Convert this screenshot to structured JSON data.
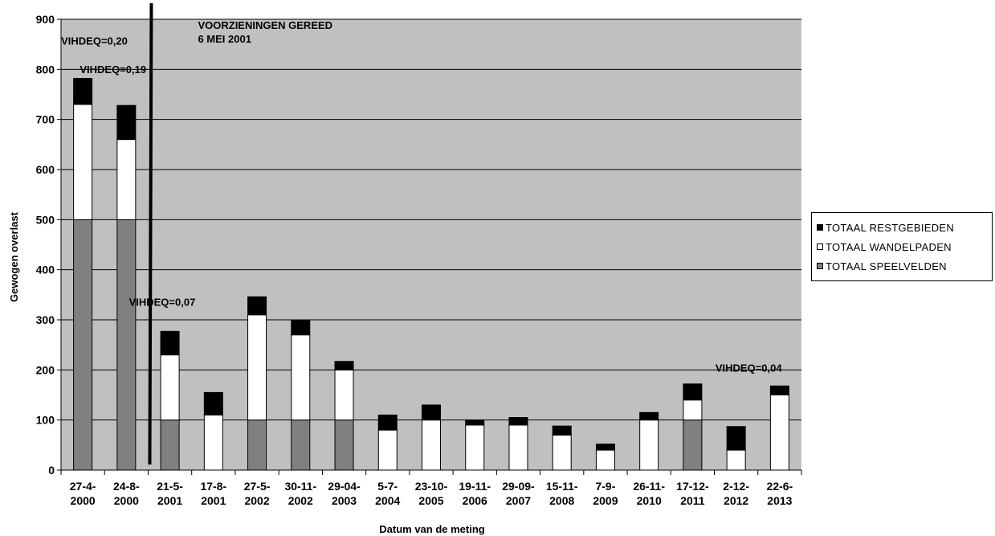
{
  "chart_data": {
    "type": "bar",
    "stacked": true,
    "ylabel": "Gewogen overlast",
    "xlabel": "Datum van de meting",
    "ylim": [
      0,
      900
    ],
    "yticks": [
      0,
      100,
      200,
      300,
      400,
      500,
      600,
      700,
      800,
      900
    ],
    "grid": true,
    "legend_position": "right",
    "categories": [
      [
        "27-4-",
        "2000"
      ],
      [
        "24-8-",
        "2000"
      ],
      [
        "21-5-",
        "2001"
      ],
      [
        "17-8-",
        "2001"
      ],
      [
        "27-5-",
        "2002"
      ],
      [
        "30-11-",
        "2002"
      ],
      [
        "29-04-",
        "2003"
      ],
      [
        "5-7-",
        "2004"
      ],
      [
        "23-10-",
        "2005"
      ],
      [
        "19-11-",
        "2006"
      ],
      [
        "29-09-",
        "2007"
      ],
      [
        "15-11-",
        "2008"
      ],
      [
        "7-9-",
        "2009"
      ],
      [
        "26-11-",
        "2010"
      ],
      [
        "17-12-",
        "2011"
      ],
      [
        "2-12-",
        "2012"
      ],
      [
        "22-6-",
        "2013"
      ]
    ],
    "series": [
      {
        "name": "TOTAAL SPEELVELDEN",
        "color": "#808080",
        "values": [
          500,
          500,
          100,
          0,
          100,
          100,
          100,
          0,
          0,
          0,
          0,
          0,
          0,
          0,
          100,
          0,
          0
        ]
      },
      {
        "name": "TOTAAL WANDELPADEN",
        "color": "#ffffff",
        "values": [
          230,
          160,
          130,
          110,
          210,
          170,
          100,
          80,
          100,
          90,
          90,
          70,
          40,
          100,
          40,
          40,
          150
        ]
      },
      {
        "name": "TOTAAL RESTGEBIEDEN",
        "color": "#000000",
        "values": [
          52,
          68,
          47,
          45,
          36,
          30,
          17,
          30,
          30,
          10,
          15,
          18,
          12,
          15,
          32,
          47,
          18
        ]
      }
    ],
    "annotations": [
      {
        "text": "VIHDEQ=0,20",
        "bar": 0
      },
      {
        "text": "VIHDEQ=0,19",
        "bar": 1
      },
      {
        "text": "VIHDEQ=0,07",
        "bar": 2
      },
      {
        "text": "VIHDEQ=0,04",
        "bar": 16
      },
      {
        "text": "VOORZIENINGEN  GEREED",
        "marker": true
      },
      {
        "text": "6 MEI 2001",
        "marker": true
      }
    ],
    "marker_after_category": 1
  },
  "legend_order": [
    2,
    1,
    0
  ]
}
